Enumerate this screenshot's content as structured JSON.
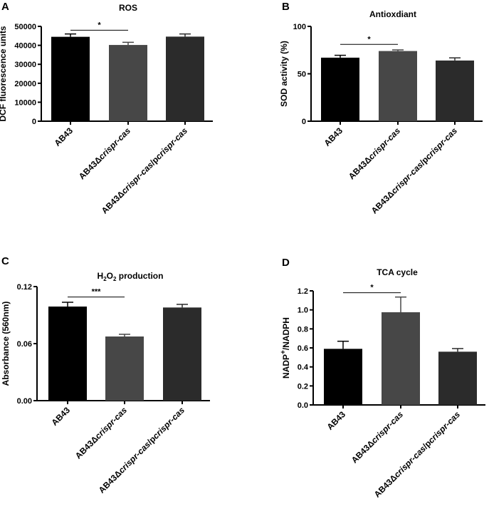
{
  "chart_data": [
    {
      "type": "bar",
      "panel": "A",
      "title": "ROS",
      "ylabel": "DCF fluorescence units",
      "categories": [
        "AB43",
        "AB43Δcrispr-cas",
        "AB43Δcrispr-cas/pcrispr-cas"
      ],
      "values": [
        44500,
        40200,
        44600
      ],
      "errors": [
        1500,
        1400,
        1400
      ],
      "ylim": [
        0,
        50000
      ],
      "yticks": [
        "0",
        "10000",
        "20000",
        "30000",
        "40000",
        "50000"
      ],
      "significance": [
        {
          "from": 0,
          "to": 1,
          "label": "*",
          "y": 48000
        }
      ],
      "colors": [
        "#000000",
        "#474747",
        "#2b2b2b"
      ]
    },
    {
      "type": "bar",
      "panel": "B",
      "title": "Antioxdiant",
      "ylabel": "SOD activity (%)",
      "categories": [
        "AB43",
        "AB43Δcrispr-cas",
        "AB43Δcrispr-cas/pcrispr-cas"
      ],
      "values": [
        67,
        74,
        64
      ],
      "errors": [
        2.5,
        1.2,
        2.8
      ],
      "ylim": [
        0,
        100
      ],
      "yticks": [
        "0",
        "50",
        "100"
      ],
      "significance": [
        {
          "from": 0,
          "to": 1,
          "label": "*",
          "y": 81
        }
      ],
      "colors": [
        "#000000",
        "#474747",
        "#2b2b2b"
      ]
    },
    {
      "type": "bar",
      "panel": "C",
      "title": "H2O2 production",
      "ylabel": "Absorbance (560nm)",
      "categories": [
        "AB43",
        "AB43Δcrispr-cas",
        "AB43Δcrispr-cas/pcrispr-cas"
      ],
      "values": [
        0.099,
        0.0675,
        0.098
      ],
      "errors": [
        0.0045,
        0.0023,
        0.0033
      ],
      "ylim": [
        0,
        0.12
      ],
      "yticks": [
        "0.00",
        "0.06",
        "0.12"
      ],
      "significance": [
        {
          "from": 0,
          "to": 1,
          "label": "***",
          "y": 0.109
        }
      ],
      "colors": [
        "#000000",
        "#474747",
        "#2b2b2b"
      ]
    },
    {
      "type": "bar",
      "panel": "D",
      "title": "TCA cycle",
      "ylabel": "NADP+/NADPH",
      "categories": [
        "AB43",
        "AB43Δcrispr-cas",
        "AB43Δcrispr-cas/pcrispr-cas"
      ],
      "values": [
        0.59,
        0.975,
        0.56
      ],
      "errors": [
        0.08,
        0.16,
        0.033
      ],
      "ylim": [
        0,
        1.2
      ],
      "yticks": [
        "0.0",
        "0.2",
        "0.4",
        "0.6",
        "0.8",
        "1.0",
        "1.2"
      ],
      "significance": [
        {
          "from": 0,
          "to": 1,
          "label": "*",
          "y": 1.18
        }
      ],
      "colors": [
        "#000000",
        "#474747",
        "#2b2b2b"
      ]
    }
  ]
}
